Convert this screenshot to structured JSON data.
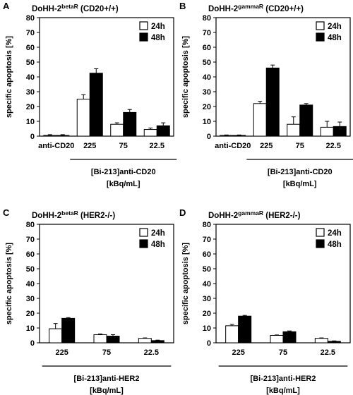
{
  "figure": {
    "legend_labels": [
      "24h",
      "48h"
    ],
    "colors": {
      "24h": "#ffffff",
      "48h": "#000000",
      "stroke": "#000000"
    }
  },
  "chart_data": [
    {
      "panel": "A",
      "type": "bar",
      "title": "DoHH-2",
      "title_super": "betaR",
      "title_suffix": " (CD20+/+)",
      "ylabel": "specific apoptosis [%]",
      "ylim": [
        0,
        80
      ],
      "yticks": [
        0,
        10,
        20,
        30,
        40,
        50,
        60,
        70,
        80
      ],
      "categories": [
        "anti-CD20",
        "225",
        "75",
        "22.5"
      ],
      "group_label_lines": [
        "[Bi-213]anti-CD20",
        "[kBq/mL]"
      ],
      "legend_position": "top-right",
      "series": [
        {
          "name": "24h",
          "values": [
            0.5,
            25,
            8,
            4.5
          ],
          "errors": [
            0.5,
            3,
            1,
            1
          ]
        },
        {
          "name": "48h",
          "values": [
            0.5,
            42.5,
            16,
            7
          ],
          "errors": [
            0.5,
            3,
            2,
            2
          ]
        }
      ]
    },
    {
      "panel": "B",
      "type": "bar",
      "title": "DoHH-2",
      "title_super": "gammaR",
      "title_suffix": " (CD20+/+)",
      "ylabel": "specific apoptosis [%]",
      "ylim": [
        0,
        80
      ],
      "yticks": [
        0,
        10,
        20,
        30,
        40,
        50,
        60,
        70,
        80
      ],
      "categories": [
        "anti-CD20",
        "225",
        "75",
        "22.5"
      ],
      "group_label_lines": [
        "[Bi-213]anti-CD20",
        "[kBq/mL]"
      ],
      "legend_position": "top-right",
      "series": [
        {
          "name": "24h",
          "values": [
            0.5,
            22,
            8,
            6
          ],
          "errors": [
            0.3,
            1.5,
            5,
            4
          ]
        },
        {
          "name": "48h",
          "values": [
            0.5,
            46,
            21,
            6.5
          ],
          "errors": [
            0.3,
            2,
            1,
            3
          ]
        }
      ]
    },
    {
      "panel": "C",
      "type": "bar",
      "title": "DoHH-2",
      "title_super": "betaR",
      "title_suffix": " (HER2-/-)",
      "ylabel": "specific apoptosis [%]",
      "ylim": [
        0,
        80
      ],
      "yticks": [
        0,
        10,
        20,
        30,
        40,
        50,
        60,
        70,
        80
      ],
      "categories": [
        "225",
        "75",
        "22.5"
      ],
      "group_label_lines": [
        "[Bi-213]anti-HER2",
        "[kBq/mL]"
      ],
      "legend_position": "top-right",
      "series": [
        {
          "name": "24h",
          "values": [
            9.5,
            5.5,
            3
          ],
          "errors": [
            3.5,
            0.5,
            0.3
          ]
        },
        {
          "name": "48h",
          "values": [
            16.5,
            4.5,
            1.5
          ],
          "errors": [
            0.5,
            1,
            0.3
          ]
        }
      ]
    },
    {
      "panel": "D",
      "type": "bar",
      "title": "DoHH-2",
      "title_super": "gammaR",
      "title_suffix": " (HER2-/-)",
      "ylabel": "specific apoptosis [%]",
      "ylim": [
        0,
        80
      ],
      "yticks": [
        0,
        10,
        20,
        30,
        40,
        50,
        60,
        70,
        80
      ],
      "categories": [
        "225",
        "75",
        "22.5"
      ],
      "group_label_lines": [
        "[Bi-213]anti-HER2",
        "[kBq/mL]"
      ],
      "legend_position": "top-right",
      "series": [
        {
          "name": "24h",
          "values": [
            11.5,
            5,
            3
          ],
          "errors": [
            1,
            0.3,
            0.3
          ]
        },
        {
          "name": "48h",
          "values": [
            18,
            7.5,
            1
          ],
          "errors": [
            0.5,
            0.5,
            0.3
          ]
        }
      ]
    }
  ]
}
